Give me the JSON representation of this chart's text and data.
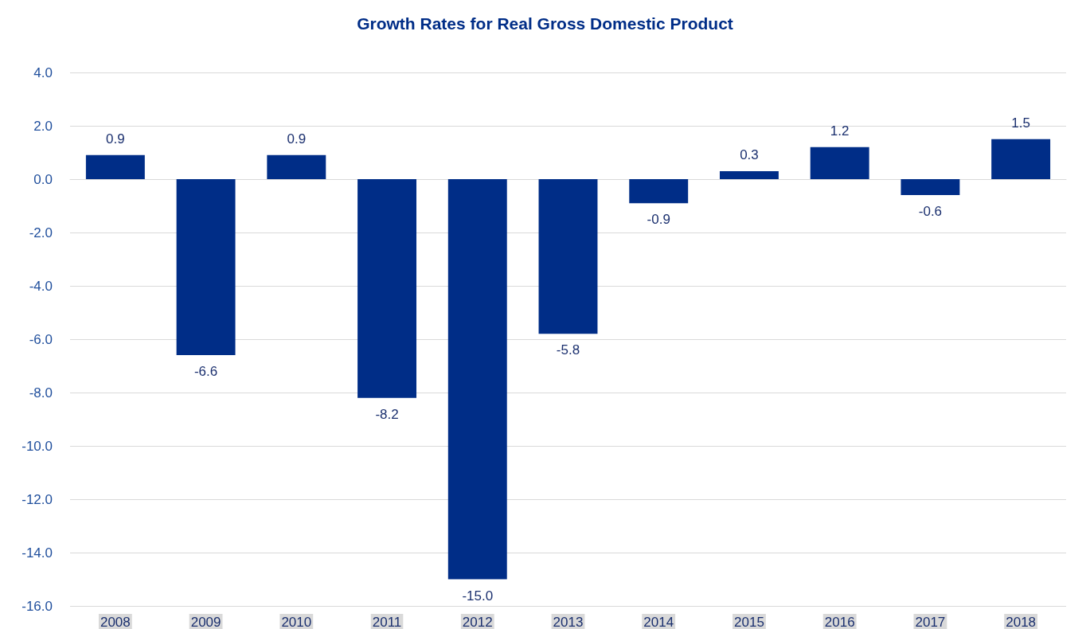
{
  "chart_data": {
    "type": "bar",
    "title": "Growth Rates for Real Gross Domestic Product",
    "categories": [
      "2008",
      "2009",
      "2010",
      "2011",
      "2012",
      "2013",
      "2014",
      "2015",
      "2016",
      "2017",
      "2018"
    ],
    "values": [
      0.9,
      -6.6,
      0.9,
      -8.2,
      -15.0,
      -5.8,
      -0.9,
      0.3,
      1.2,
      -0.6,
      1.5
    ],
    "value_labels": [
      "0.9",
      "-6.6",
      "0.9",
      "-8.2",
      "-15.0",
      "-5.8",
      "-0.9",
      "0.3",
      "1.2",
      "-0.6",
      "1.5"
    ],
    "color": "#002d87",
    "ylim": [
      -16,
      4
    ],
    "yticks": [
      {
        "value": -16,
        "label": "-16.0"
      },
      {
        "value": -14,
        "label": "-14.0"
      },
      {
        "value": -12,
        "label": "-12.0"
      },
      {
        "value": -10,
        "label": "-10.0"
      },
      {
        "value": -8,
        "label": "-8.0"
      },
      {
        "value": -6,
        "label": "-6.0"
      },
      {
        "value": -4,
        "label": "-4.0"
      },
      {
        "value": -2,
        "label": "-2.0"
      },
      {
        "value": 0,
        "label": "0.0"
      },
      {
        "value": 2,
        "label": "2.0"
      },
      {
        "value": 4,
        "label": "4.0"
      }
    ],
    "grid": "y"
  }
}
